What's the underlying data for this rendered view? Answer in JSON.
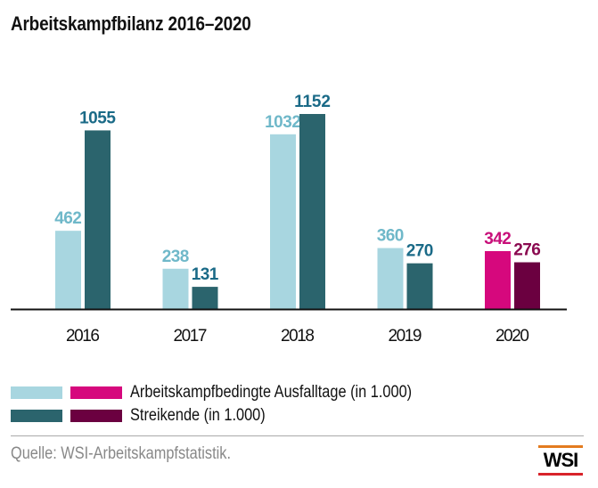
{
  "title": "Arbeitskampfbilanz 2016–2020",
  "chart_data": {
    "type": "bar",
    "title": "Arbeitskampfbilanz 2016–2020",
    "xlabel": "",
    "ylabel": "",
    "categories": [
      "2016",
      "2017",
      "2018",
      "2019",
      "2020"
    ],
    "series": [
      {
        "name": "Arbeitskampfbedingte Ausfalltage (in 1.000)",
        "values": [
          462,
          238,
          1032,
          360,
          342
        ]
      },
      {
        "name": "Streikende (in 1.000)",
        "values": [
          1055,
          131,
          1152,
          270,
          276
        ]
      }
    ],
    "colors": {
      "series1": [
        "#a8d6e0",
        "#a8d6e0",
        "#a8d6e0",
        "#a8d6e0",
        "#d6087d"
      ],
      "series2": [
        "#2b646d",
        "#2b646d",
        "#2b646d",
        "#2b646d",
        "#6b0040"
      ],
      "label1": [
        "#6fb8c9",
        "#6fb8c9",
        "#6fb8c9",
        "#6fb8c9",
        "#c8107a"
      ],
      "label2": [
        "#1a6a87",
        "#1a6a87",
        "#1a6a87",
        "#1a6a87",
        "#8a0a50"
      ]
    },
    "ylim": [
      0,
      1152
    ],
    "grid": false,
    "legend_position": "bottom-left",
    "highlight_category": "2020"
  },
  "legend": {
    "items": [
      {
        "label": "Arbeitskampfbedingte Ausfalltage (in 1.000)",
        "colors": [
          "#a8d6e0",
          "#d6087d"
        ]
      },
      {
        "label": "Streikende (in 1.000)",
        "colors": [
          "#2b646d",
          "#6b0040"
        ]
      }
    ]
  },
  "source": "Quelle: WSI-Arbeitskampfstatistik.",
  "logo": {
    "text": "WSI",
    "top_color": "#e37b1f",
    "bottom_color": "#d8232a"
  }
}
